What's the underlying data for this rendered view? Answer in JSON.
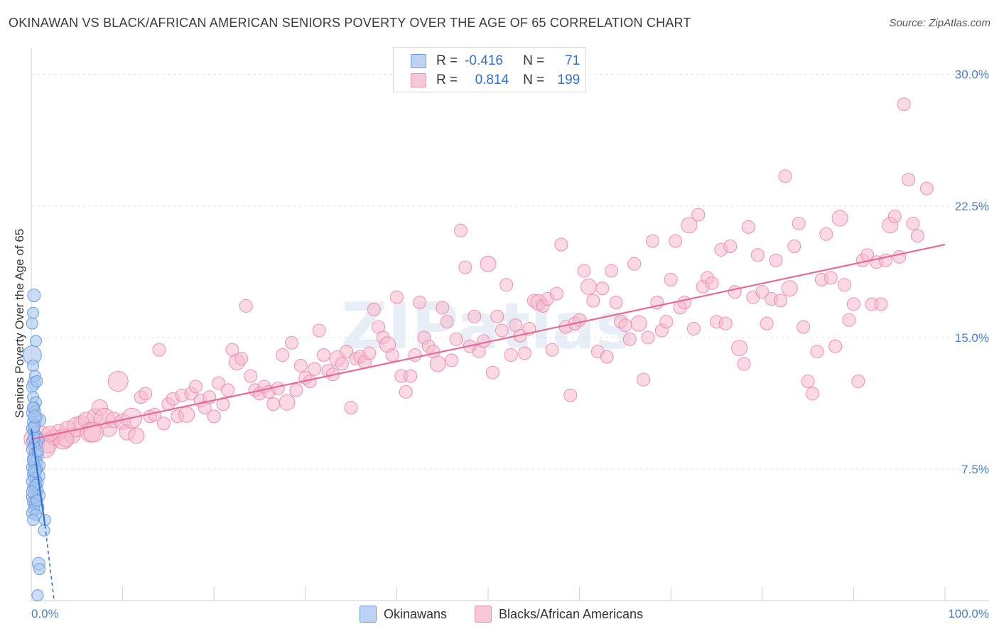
{
  "title": "OKINAWAN VS BLACK/AFRICAN AMERICAN SENIORS POVERTY OVER THE AGE OF 65 CORRELATION CHART",
  "source": "Source: ZipAtlas.com",
  "watermark": "ZIPatlas",
  "colors": {
    "blue_fill": "#a9c6f0",
    "blue_stroke": "#6a9be0",
    "blue_line": "#2e6fd6",
    "pink_fill": "#f5b9cc",
    "pink_stroke": "#ec8fae",
    "pink_line": "#e56b96",
    "grid": "#e0e0e0",
    "tick_text": "#4a7fd0"
  },
  "legend_top": [
    {
      "r_label": "R =",
      "r_value": "-0.416",
      "n_label": "N =",
      "n_value": "71"
    },
    {
      "r_label": "R =",
      "r_value": "0.814",
      "n_label": "N =",
      "n_value": "199"
    }
  ],
  "legend_bottom": [
    "Okinawans",
    "Blacks/African Americans"
  ],
  "chart_data": {
    "type": "scatter",
    "title": "OKINAWAN VS BLACK/AFRICAN AMERICAN SENIORS POVERTY OVER THE AGE OF 65 CORRELATION CHART",
    "xlabel": "",
    "ylabel": "Seniors Poverty Over the Age of 65",
    "xlim": [
      0,
      100
    ],
    "ylim": [
      0,
      31
    ],
    "x_tick_labels": [
      "0.0%",
      "100.0%"
    ],
    "y_ticks": [
      7.5,
      15.0,
      22.5,
      30.0
    ],
    "y_tick_labels": [
      "7.5%",
      "15.0%",
      "22.5%",
      "30.0%"
    ],
    "grid": true,
    "legend_position": "top-center",
    "series": [
      {
        "name": "Okinawans",
        "trend": {
          "x": [
            0,
            1.5
          ],
          "y": [
            9.8,
            4.3
          ],
          "dashed_to": [
            2.5,
            0
          ]
        },
        "points": [
          [
            0.3,
            17.4
          ],
          [
            0.2,
            16.4
          ],
          [
            0.1,
            15.8
          ],
          [
            0.5,
            14.8
          ],
          [
            0.1,
            14.0
          ],
          [
            0.2,
            13.4
          ],
          [
            0.4,
            12.8
          ],
          [
            0.3,
            12.4
          ],
          [
            0.1,
            12.2
          ],
          [
            0.2,
            11.6
          ],
          [
            0.5,
            11.3
          ],
          [
            0.3,
            11.0
          ],
          [
            0.1,
            10.7
          ],
          [
            0.6,
            10.4
          ],
          [
            0.9,
            10.3
          ],
          [
            0.2,
            10.2
          ],
          [
            0.4,
            10.0
          ],
          [
            0.1,
            9.8
          ],
          [
            0.3,
            9.6
          ],
          [
            0.5,
            9.4
          ],
          [
            0.8,
            9.2
          ],
          [
            0.2,
            9.1
          ],
          [
            0.6,
            8.9
          ],
          [
            0.3,
            8.8
          ],
          [
            0.1,
            8.6
          ],
          [
            0.4,
            8.4
          ],
          [
            0.7,
            8.3
          ],
          [
            0.2,
            8.1
          ],
          [
            0.5,
            7.9
          ],
          [
            0.3,
            7.8
          ],
          [
            0.9,
            7.7
          ],
          [
            0.1,
            7.6
          ],
          [
            0.6,
            7.5
          ],
          [
            0.4,
            7.3
          ],
          [
            0.2,
            7.2
          ],
          [
            0.8,
            7.1
          ],
          [
            0.3,
            7.0
          ],
          [
            0.5,
            6.9
          ],
          [
            0.1,
            6.8
          ],
          [
            0.7,
            6.7
          ],
          [
            0.4,
            6.5
          ],
          [
            0.2,
            6.4
          ],
          [
            0.6,
            6.3
          ],
          [
            0.3,
            6.1
          ],
          [
            0.9,
            6.0
          ],
          [
            0.1,
            5.9
          ],
          [
            0.5,
            5.8
          ],
          [
            0.2,
            5.6
          ],
          [
            0.4,
            5.5
          ],
          [
            0.7,
            5.3
          ],
          [
            0.3,
            5.2
          ],
          [
            0.1,
            5.0
          ],
          [
            0.5,
            4.9
          ],
          [
            1.5,
            4.6
          ],
          [
            0.2,
            4.6
          ],
          [
            1.4,
            4.0
          ],
          [
            0.8,
            2.1
          ],
          [
            0.9,
            1.8
          ],
          [
            0.7,
            0.3
          ],
          [
            0.4,
            10.8
          ],
          [
            0.6,
            12.5
          ],
          [
            0.3,
            9.3
          ],
          [
            0.2,
            8.0
          ],
          [
            0.4,
            7.4
          ],
          [
            0.5,
            6.6
          ],
          [
            0.1,
            6.2
          ],
          [
            0.6,
            5.7
          ],
          [
            0.3,
            9.9
          ],
          [
            0.2,
            11.0
          ],
          [
            0.7,
            8.5
          ],
          [
            0.4,
            10.5
          ]
        ]
      },
      {
        "name": "Blacks/African Americans",
        "trend": {
          "x": [
            0,
            100
          ],
          "y": [
            9.2,
            20.3
          ]
        },
        "points": [
          [
            0.3,
            9.2
          ],
          [
            0.6,
            8.9
          ],
          [
            1.2,
            9.5
          ],
          [
            1.8,
            9.0
          ],
          [
            2.5,
            9.3
          ],
          [
            3.0,
            9.6
          ],
          [
            3.5,
            9.2
          ],
          [
            4.0,
            9.8
          ],
          [
            4.5,
            9.4
          ],
          [
            5.0,
            9.9
          ],
          [
            5.5,
            10.1
          ],
          [
            6.0,
            10.3
          ],
          [
            6.5,
            9.6
          ],
          [
            7.0,
            10.5
          ],
          [
            7.5,
            11.0
          ],
          [
            8.0,
            10.4
          ],
          [
            8.5,
            9.8
          ],
          [
            9.0,
            10.3
          ],
          [
            9.5,
            12.5
          ],
          [
            10.0,
            10.2
          ],
          [
            10.5,
            9.6
          ],
          [
            11.0,
            10.4
          ],
          [
            11.5,
            9.4
          ],
          [
            12.0,
            11.6
          ],
          [
            12.5,
            11.8
          ],
          [
            13.0,
            10.5
          ],
          [
            13.5,
            10.6
          ],
          [
            14.0,
            14.3
          ],
          [
            14.5,
            10.1
          ],
          [
            15.0,
            11.2
          ],
          [
            15.5,
            11.5
          ],
          [
            16.0,
            10.5
          ],
          [
            16.5,
            11.7
          ],
          [
            17.0,
            10.6
          ],
          [
            17.5,
            11.8
          ],
          [
            18.0,
            12.2
          ],
          [
            18.5,
            11.4
          ],
          [
            19.0,
            11.0
          ],
          [
            19.5,
            11.6
          ],
          [
            20.0,
            10.5
          ],
          [
            20.5,
            12.4
          ],
          [
            21.0,
            11.2
          ],
          [
            21.5,
            12.0
          ],
          [
            22.0,
            14.3
          ],
          [
            22.5,
            13.6
          ],
          [
            23.0,
            13.8
          ],
          [
            23.5,
            16.8
          ],
          [
            24.0,
            12.8
          ],
          [
            24.5,
            12.0
          ],
          [
            25.0,
            11.8
          ],
          [
            25.5,
            12.2
          ],
          [
            26.0,
            11.9
          ],
          [
            26.5,
            11.2
          ],
          [
            27.0,
            12.1
          ],
          [
            27.5,
            14.0
          ],
          [
            28.0,
            11.3
          ],
          [
            28.5,
            14.7
          ],
          [
            29.0,
            12.0
          ],
          [
            29.5,
            13.4
          ],
          [
            30.0,
            12.7
          ],
          [
            30.5,
            12.5
          ],
          [
            31.0,
            13.2
          ],
          [
            31.5,
            15.4
          ],
          [
            32.0,
            14.0
          ],
          [
            32.5,
            13.1
          ],
          [
            33.0,
            12.9
          ],
          [
            33.5,
            13.8
          ],
          [
            34.0,
            13.5
          ],
          [
            34.5,
            14.2
          ],
          [
            35.0,
            11.0
          ],
          [
            35.5,
            13.8
          ],
          [
            36.0,
            13.9
          ],
          [
            36.5,
            13.6
          ],
          [
            37.0,
            14.1
          ],
          [
            37.5,
            16.6
          ],
          [
            38.0,
            15.6
          ],
          [
            38.5,
            15.0
          ],
          [
            39.0,
            14.6
          ],
          [
            39.5,
            14.0
          ],
          [
            40.0,
            17.3
          ],
          [
            40.5,
            12.8
          ],
          [
            41.0,
            11.9
          ],
          [
            41.5,
            12.8
          ],
          [
            42.0,
            14.0
          ],
          [
            42.5,
            17.0
          ],
          [
            43.0,
            15.0
          ],
          [
            43.5,
            14.5
          ],
          [
            44.0,
            14.2
          ],
          [
            44.5,
            13.5
          ],
          [
            45.0,
            16.7
          ],
          [
            45.5,
            15.9
          ],
          [
            46.0,
            13.7
          ],
          [
            46.5,
            14.9
          ],
          [
            47.0,
            21.1
          ],
          [
            47.5,
            19.0
          ],
          [
            48.0,
            14.5
          ],
          [
            48.5,
            16.2
          ],
          [
            49.0,
            14.2
          ],
          [
            49.5,
            14.8
          ],
          [
            50.0,
            19.2
          ],
          [
            50.5,
            13.0
          ],
          [
            51.0,
            16.2
          ],
          [
            51.5,
            15.4
          ],
          [
            52.0,
            18.0
          ],
          [
            52.5,
            14.0
          ],
          [
            53.0,
            15.7
          ],
          [
            53.5,
            15.1
          ],
          [
            54.0,
            14.1
          ],
          [
            54.5,
            15.5
          ],
          [
            55.0,
            17.1
          ],
          [
            55.5,
            17.0
          ],
          [
            56.0,
            16.8
          ],
          [
            56.5,
            17.2
          ],
          [
            57.0,
            14.3
          ],
          [
            57.5,
            17.5
          ],
          [
            58.0,
            20.3
          ],
          [
            58.5,
            15.6
          ],
          [
            59.0,
            11.7
          ],
          [
            59.5,
            15.8
          ],
          [
            60.0,
            16.0
          ],
          [
            60.5,
            18.8
          ],
          [
            61.0,
            17.9
          ],
          [
            61.5,
            17.1
          ],
          [
            62.0,
            14.2
          ],
          [
            62.5,
            17.8
          ],
          [
            63.0,
            13.9
          ],
          [
            63.5,
            18.8
          ],
          [
            64.0,
            17.0
          ],
          [
            64.5,
            15.9
          ],
          [
            65.0,
            15.7
          ],
          [
            65.5,
            14.9
          ],
          [
            66.0,
            19.2
          ],
          [
            66.5,
            15.8
          ],
          [
            67.0,
            12.6
          ],
          [
            67.5,
            15.0
          ],
          [
            68.0,
            20.5
          ],
          [
            68.5,
            17.0
          ],
          [
            69.0,
            15.4
          ],
          [
            69.5,
            15.9
          ],
          [
            70.0,
            18.3
          ],
          [
            70.5,
            20.5
          ],
          [
            71.0,
            16.7
          ],
          [
            71.5,
            17.0
          ],
          [
            72.0,
            21.4
          ],
          [
            72.5,
            15.5
          ],
          [
            73.0,
            22.0
          ],
          [
            73.5,
            17.9
          ],
          [
            74.0,
            18.4
          ],
          [
            74.5,
            18.1
          ],
          [
            75.0,
            15.9
          ],
          [
            75.5,
            20.0
          ],
          [
            76.0,
            15.8
          ],
          [
            76.5,
            20.2
          ],
          [
            77.0,
            17.6
          ],
          [
            77.5,
            14.4
          ],
          [
            78.0,
            13.5
          ],
          [
            78.5,
            21.3
          ],
          [
            79.0,
            17.3
          ],
          [
            79.5,
            19.7
          ],
          [
            80.0,
            17.6
          ],
          [
            80.5,
            15.8
          ],
          [
            81.0,
            17.2
          ],
          [
            81.5,
            19.4
          ],
          [
            82.0,
            17.1
          ],
          [
            82.5,
            24.2
          ],
          [
            83.0,
            17.8
          ],
          [
            83.5,
            20.2
          ],
          [
            84.0,
            21.5
          ],
          [
            84.5,
            15.6
          ],
          [
            85.0,
            12.5
          ],
          [
            85.5,
            11.8
          ],
          [
            86.0,
            14.2
          ],
          [
            86.5,
            18.3
          ],
          [
            87.0,
            20.9
          ],
          [
            87.5,
            18.4
          ],
          [
            88.0,
            14.5
          ],
          [
            88.5,
            21.8
          ],
          [
            89.0,
            18.0
          ],
          [
            89.5,
            16.0
          ],
          [
            90.0,
            16.9
          ],
          [
            90.5,
            12.5
          ],
          [
            91.0,
            19.4
          ],
          [
            91.5,
            19.7
          ],
          [
            92.0,
            16.9
          ],
          [
            92.5,
            19.3
          ],
          [
            93.0,
            16.9
          ],
          [
            93.5,
            19.4
          ],
          [
            94.0,
            21.4
          ],
          [
            94.5,
            21.9
          ],
          [
            95.0,
            19.6
          ],
          [
            95.5,
            28.3
          ],
          [
            96.0,
            24.0
          ],
          [
            96.5,
            21.5
          ],
          [
            97.0,
            20.8
          ],
          [
            98.0,
            23.5
          ],
          [
            1.5,
            8.7
          ],
          [
            2.0,
            9.5
          ],
          [
            3.8,
            9.2
          ],
          [
            6.8,
            9.6
          ]
        ]
      }
    ]
  }
}
